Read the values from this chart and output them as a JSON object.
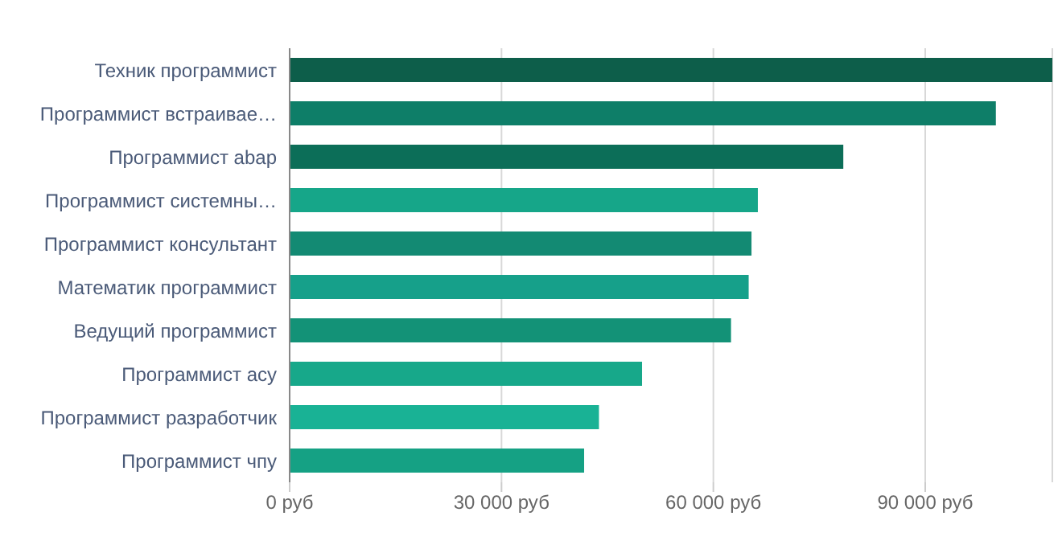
{
  "chart_data": {
    "type": "bar",
    "orientation": "horizontal",
    "categories": [
      "Техник программист",
      "Программист встраивае…",
      "Программист abap",
      "Программист системны…",
      "Программист консультант",
      "Математик программист",
      "Ведущий программист",
      "Программист асу",
      "Программист разработчик",
      "Программист чпу"
    ],
    "values": [
      108000,
      100000,
      78400,
      66300,
      65400,
      65000,
      62500,
      49900,
      43800,
      41700
    ],
    "colors": [
      "#0d5e4a",
      "#0e7e68",
      "#0c6e58",
      "#16a689",
      "#138a73",
      "#16a08a",
      "#139277",
      "#17a88a",
      "#19b295",
      "#15a184"
    ],
    "xlim": [
      0,
      108000
    ],
    "xticks": [
      {
        "value": 0,
        "label": "0 руб"
      },
      {
        "value": 30000,
        "label": "30 000 руб"
      },
      {
        "value": 60000,
        "label": "60 000 руб"
      },
      {
        "value": 90000,
        "label": "90 000 руб"
      }
    ],
    "grid": "x"
  }
}
